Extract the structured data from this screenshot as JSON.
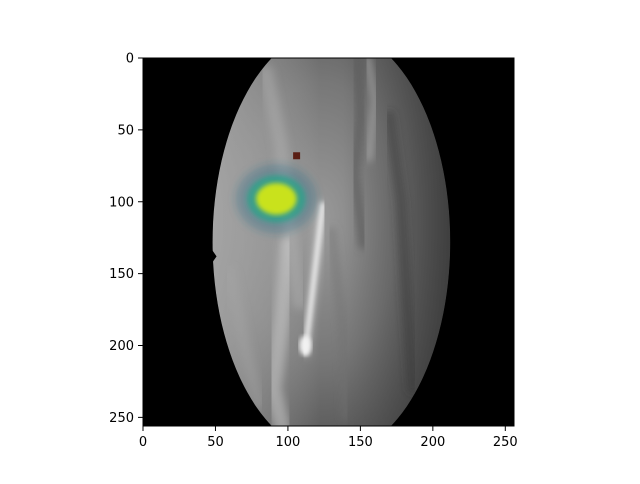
{
  "figure": {
    "image_description_label": "",
    "x_ticks": [
      "0",
      "50",
      "100",
      "150",
      "200",
      "250"
    ],
    "y_ticks": [
      "0",
      "50",
      "100",
      "150",
      "200",
      "250"
    ],
    "x_tick_values": [
      0,
      50,
      100,
      150,
      200,
      250
    ],
    "y_tick_values": [
      0,
      50,
      100,
      150,
      200,
      250
    ],
    "extent": [
      0,
      256
    ],
    "colors": {
      "background": "#000000",
      "heat_outer": "#2f6f8a",
      "heat_mid": "#2aa38a",
      "heat_inner": "#c9e21b",
      "marker": "#5a1e14"
    },
    "overlays": {
      "heatmap_center": [
        92,
        98
      ],
      "heatmap_radius": [
        14,
        11
      ],
      "marker_point": [
        106,
        68
      ]
    }
  }
}
